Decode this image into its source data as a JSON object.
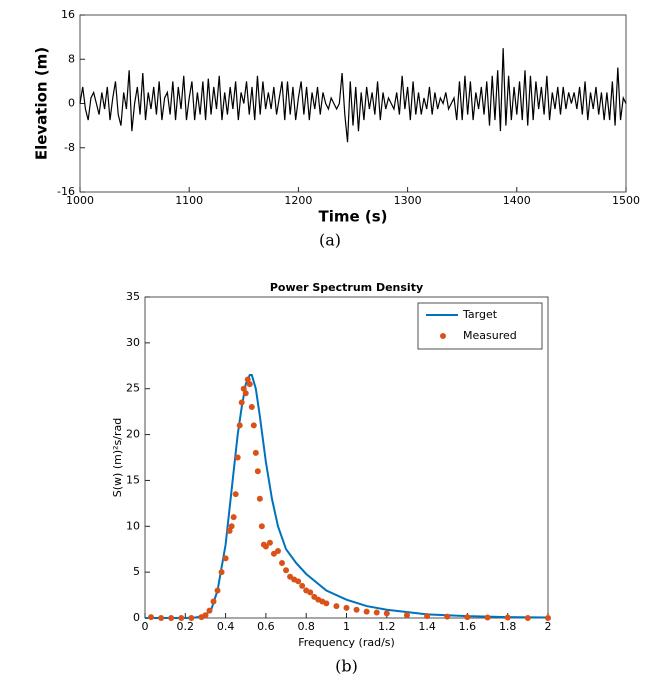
{
  "chart_data": [
    {
      "type": "line",
      "xlabel": "Time (s)",
      "ylabel": "Elevation (m)",
      "caption": "(a)",
      "color": "#000000",
      "xlim": [
        1000,
        1500
      ],
      "xticks": [
        1000,
        1100,
        1200,
        1300,
        1400,
        1500
      ],
      "ylim": [
        -16,
        16
      ],
      "yticks": [
        -16,
        -8,
        0,
        8,
        16
      ],
      "grid": false,
      "x": [
        1000,
        1002.5,
        1005,
        1007.5,
        1010,
        1012.5,
        1015,
        1017.5,
        1020,
        1022.5,
        1025,
        1027.5,
        1030,
        1032.5,
        1035,
        1037.5,
        1040,
        1042.5,
        1045,
        1047.5,
        1050,
        1052.5,
        1055,
        1057.5,
        1060,
        1062.5,
        1065,
        1067.5,
        1070,
        1072.5,
        1075,
        1077.5,
        1080,
        1082.5,
        1085,
        1087.5,
        1090,
        1092.5,
        1095,
        1097.5,
        1100,
        1102.5,
        1105,
        1107.5,
        1110,
        1112.5,
        1115,
        1117.5,
        1120,
        1122.5,
        1125,
        1127.5,
        1130,
        1132.5,
        1135,
        1137.5,
        1140,
        1142.5,
        1145,
        1147.5,
        1150,
        1152.5,
        1155,
        1157.5,
        1160,
        1162.5,
        1165,
        1167.5,
        1170,
        1172.5,
        1175,
        1177.5,
        1180,
        1182.5,
        1185,
        1187.5,
        1190,
        1192.5,
        1195,
        1197.5,
        1200,
        1202.5,
        1205,
        1207.5,
        1210,
        1212.5,
        1215,
        1217.5,
        1220,
        1222.5,
        1225,
        1227.5,
        1230,
        1232.5,
        1235,
        1237.5,
        1240,
        1242.5,
        1245,
        1247.5,
        1250,
        1252.5,
        1255,
        1257.5,
        1260,
        1262.5,
        1265,
        1267.5,
        1270,
        1272.5,
        1275,
        1277.5,
        1280,
        1282.5,
        1285,
        1287.5,
        1290,
        1292.5,
        1295,
        1297.5,
        1300,
        1302.5,
        1305,
        1307.5,
        1310,
        1312.5,
        1315,
        1317.5,
        1320,
        1322.5,
        1325,
        1327.5,
        1330,
        1332.5,
        1335,
        1337.5,
        1340,
        1342.5,
        1345,
        1347.5,
        1350,
        1352.5,
        1355,
        1357.5,
        1360,
        1362.5,
        1365,
        1367.5,
        1370,
        1372.5,
        1375,
        1377.5,
        1380,
        1382.5,
        1385,
        1387.5,
        1390,
        1392.5,
        1395,
        1397.5,
        1400,
        1402.5,
        1405,
        1407.5,
        1410,
        1412.5,
        1415,
        1417.5,
        1420,
        1422.5,
        1425,
        1427.5,
        1430,
        1432.5,
        1435,
        1437.5,
        1440,
        1442.5,
        1445,
        1447.5,
        1450,
        1452.5,
        1455,
        1457.5,
        1460,
        1462.5,
        1465,
        1467.5,
        1470,
        1472.5,
        1475,
        1477.5,
        1480,
        1482.5,
        1485,
        1487.5,
        1490,
        1492.5,
        1495,
        1497.5,
        1500
      ],
      "values": [
        0,
        3,
        -1,
        -3,
        1,
        2,
        0,
        -2,
        2,
        -1,
        3,
        -3,
        1,
        4,
        -2,
        -4,
        2,
        -1,
        6,
        -5,
        0,
        3,
        -2,
        5.5,
        -3,
        2,
        -1,
        3,
        -2,
        4,
        -3,
        1,
        2,
        -2,
        4,
        -3,
        3,
        -1,
        5,
        -3,
        1,
        4,
        -3,
        2,
        -2,
        4,
        -3,
        4.5,
        -2,
        3,
        -1,
        5,
        -3,
        2,
        -2,
        3,
        -1,
        4,
        -3,
        2,
        0,
        4,
        -2,
        3,
        -3,
        5,
        -2,
        4,
        -1,
        2,
        -1,
        3,
        -2,
        1,
        4,
        -3,
        4,
        -2,
        3,
        -3,
        1,
        4,
        -2,
        3,
        -3,
        2,
        -1,
        3,
        -2,
        2,
        0,
        -1,
        1,
        0,
        -1,
        0,
        5.5,
        -2,
        -7,
        4,
        -4,
        3,
        -5,
        2,
        -3,
        3,
        -1,
        2,
        -2,
        4,
        -3,
        2,
        -1,
        1,
        0,
        -1,
        2,
        -2,
        5,
        -1,
        3,
        -3,
        4,
        -2,
        2,
        -2,
        1,
        -1,
        3,
        -2,
        2,
        -1,
        1,
        0,
        2,
        -1,
        0,
        1,
        -3,
        4,
        -3,
        5,
        -2,
        4,
        -3,
        2,
        -1,
        3,
        -2,
        4,
        -4,
        5,
        -3,
        6,
        -5,
        10,
        -4,
        5,
        -3,
        3,
        -2,
        4,
        -3,
        6,
        -4,
        5,
        -3,
        4,
        -1,
        3,
        -2,
        5,
        -3,
        2,
        -1,
        3,
        -2,
        3,
        -1,
        2,
        0,
        2,
        -1,
        3,
        -2,
        4,
        -3,
        2,
        -1,
        3,
        -2,
        2,
        -3,
        2,
        -3,
        4,
        -4,
        6.5,
        -3,
        1,
        0
      ]
    },
    {
      "type": "line",
      "title": "Power Spectrum Density",
      "xlabel": "Frequency (rad/s)",
      "ylabel": "S(w) (m)²s/rad",
      "caption": "(b)",
      "xlim": [
        0,
        2
      ],
      "xticks": [
        0,
        0.2,
        0.4,
        0.6,
        0.8,
        1,
        1.2,
        1.4,
        1.6,
        1.8,
        2
      ],
      "ylim": [
        0,
        35
      ],
      "yticks": [
        0,
        5,
        10,
        15,
        20,
        25,
        30,
        35
      ],
      "grid": false,
      "legend": "northeast",
      "series": [
        {
          "name": "Target",
          "color": "#0072bd",
          "mode": "line",
          "x": [
            0,
            0.1,
            0.2,
            0.25,
            0.3,
            0.33,
            0.36,
            0.4,
            0.43,
            0.46,
            0.48,
            0.5,
            0.52,
            0.53,
            0.55,
            0.57,
            0.6,
            0.63,
            0.66,
            0.7,
            0.75,
            0.8,
            0.9,
            1.0,
            1.1,
            1.2,
            1.4,
            1.6,
            1.8,
            2.0
          ],
          "values": [
            0,
            0,
            0,
            0.05,
            0.3,
            1,
            3,
            8,
            14,
            20,
            23,
            25.5,
            26.5,
            26.5,
            25,
            22,
            17,
            13,
            10,
            7.5,
            6,
            4.8,
            3,
            2,
            1.3,
            0.9,
            0.4,
            0.2,
            0.1,
            0.05
          ]
        },
        {
          "name": "Measured",
          "color": "#d95319",
          "mode": "markers",
          "x": [
            0.03,
            0.08,
            0.13,
            0.18,
            0.23,
            0.28,
            0.3,
            0.32,
            0.34,
            0.36,
            0.38,
            0.4,
            0.42,
            0.43,
            0.44,
            0.45,
            0.46,
            0.47,
            0.48,
            0.49,
            0.5,
            0.51,
            0.52,
            0.53,
            0.54,
            0.55,
            0.56,
            0.57,
            0.58,
            0.59,
            0.6,
            0.62,
            0.64,
            0.66,
            0.68,
            0.7,
            0.72,
            0.74,
            0.76,
            0.78,
            0.8,
            0.82,
            0.84,
            0.86,
            0.88,
            0.9,
            0.95,
            1.0,
            1.05,
            1.1,
            1.15,
            1.2,
            1.3,
            1.4,
            1.5,
            1.6,
            1.7,
            1.8,
            1.9,
            2.0
          ],
          "values": [
            0.1,
            0,
            0,
            0,
            0,
            0.1,
            0.3,
            0.8,
            1.8,
            3,
            5,
            6.5,
            9.5,
            10,
            11,
            13.5,
            17.5,
            21,
            23.5,
            25,
            24.5,
            26,
            25.5,
            23,
            21,
            18,
            16,
            13,
            10,
            8,
            7.8,
            8.2,
            7,
            7.3,
            6,
            5.2,
            4.5,
            4.2,
            4,
            3.5,
            3,
            2.8,
            2.3,
            2,
            1.8,
            1.6,
            1.3,
            1.1,
            0.9,
            0.7,
            0.6,
            0.5,
            0.3,
            0.2,
            0.15,
            0.1,
            0.05,
            0.05,
            0,
            0
          ]
        }
      ]
    }
  ]
}
